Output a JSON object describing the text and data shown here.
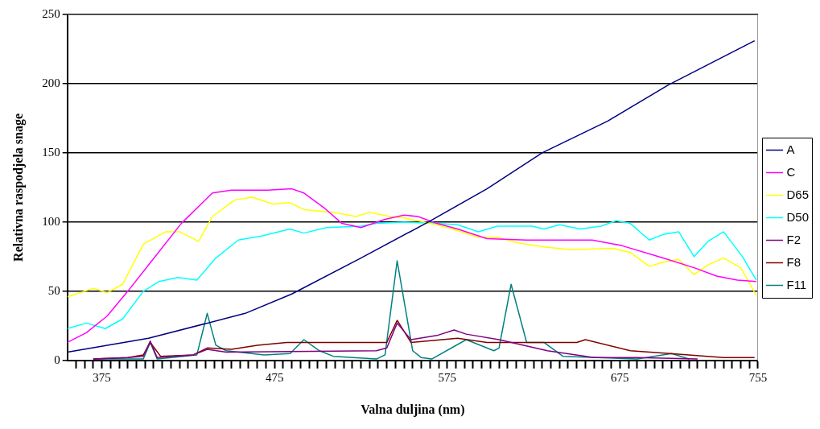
{
  "chart_data": {
    "type": "line",
    "xlabel": "Valna duljina (nm)",
    "ylabel": "Relativna raspodjela snage",
    "xlim": [
      355,
      755
    ],
    "ylim": [
      0,
      250
    ],
    "yticks": [
      0,
      50,
      100,
      150,
      200,
      250
    ],
    "xticks": [
      {
        "value": 360,
        "label": null
      },
      {
        "value": 365,
        "label": null
      },
      {
        "value": 370,
        "label": null
      },
      375,
      {
        "value": 380,
        "label": null
      },
      {
        "value": 385,
        "label": null
      },
      {
        "value": 390,
        "label": null
      },
      {
        "value": 395,
        "label": null
      },
      {
        "value": 400,
        "label": null
      },
      {
        "value": 405,
        "label": null
      },
      {
        "value": 410,
        "label": null
      },
      {
        "value": 415,
        "label": null
      },
      {
        "value": 420,
        "label": null
      },
      {
        "value": 425,
        "label": null
      },
      {
        "value": 430,
        "label": null
      },
      {
        "value": 435,
        "label": null
      },
      {
        "value": 440,
        "label": null
      },
      {
        "value": 445,
        "label": null
      },
      {
        "value": 450,
        "label": null
      },
      {
        "value": 455,
        "label": null
      },
      {
        "value": 460,
        "label": null
      },
      {
        "value": 465,
        "label": null
      },
      {
        "value": 470,
        "label": null
      },
      475,
      {
        "value": 480,
        "label": null
      },
      {
        "value": 485,
        "label": null
      },
      {
        "value": 490,
        "label": null
      },
      {
        "value": 495,
        "label": null
      },
      {
        "value": 500,
        "label": null
      },
      {
        "value": 505,
        "label": null
      },
      {
        "value": 510,
        "label": null
      },
      {
        "value": 515,
        "label": null
      },
      {
        "value": 520,
        "label": null
      },
      {
        "value": 525,
        "label": null
      },
      {
        "value": 530,
        "label": null
      },
      {
        "value": 535,
        "label": null
      },
      {
        "value": 540,
        "label": null
      },
      {
        "value": 545,
        "label": null
      },
      {
        "value": 550,
        "label": null
      },
      {
        "value": 555,
        "label": null
      },
      {
        "value": 560,
        "label": null
      },
      {
        "value": 565,
        "label": null
      },
      {
        "value": 570,
        "label": null
      },
      575,
      {
        "value": 580,
        "label": null
      },
      {
        "value": 585,
        "label": null
      },
      {
        "value": 590,
        "label": null
      },
      {
        "value": 595,
        "label": null
      },
      {
        "value": 600,
        "label": null
      },
      {
        "value": 605,
        "label": null
      },
      {
        "value": 610,
        "label": null
      },
      {
        "value": 615,
        "label": null
      },
      {
        "value": 620,
        "label": null
      },
      {
        "value": 625,
        "label": null
      },
      {
        "value": 630,
        "label": null
      },
      {
        "value": 635,
        "label": null
      },
      {
        "value": 640,
        "label": null
      },
      {
        "value": 645,
        "label": null
      },
      {
        "value": 650,
        "label": null
      },
      {
        "value": 655,
        "label": null
      },
      {
        "value": 660,
        "label": null
      },
      {
        "value": 665,
        "label": null
      },
      {
        "value": 670,
        "label": null
      },
      675,
      {
        "value": 680,
        "label": null
      },
      {
        "value": 685,
        "label": null
      },
      {
        "value": 690,
        "label": null
      },
      {
        "value": 695,
        "label": null
      },
      {
        "value": 700,
        "label": null
      },
      {
        "value": 705,
        "label": null
      },
      {
        "value": 710,
        "label": null
      },
      {
        "value": 715,
        "label": null
      },
      {
        "value": 720,
        "label": null
      },
      {
        "value": 725,
        "label": null
      },
      {
        "value": 730,
        "label": null
      },
      {
        "value": 735,
        "label": null
      },
      {
        "value": 740,
        "label": null
      },
      {
        "value": 745,
        "label": null
      },
      {
        "value": 750,
        "label": null
      },
      755
    ],
    "grid": "y",
    "legend": "right",
    "marker": "none",
    "line_style": "solid",
    "series": [
      {
        "name": "A",
        "color": "#000080",
        "x": [
          355,
          402,
          458,
          485,
          525,
          564,
          598,
          630,
          668,
          703,
          728,
          753
        ],
        "values": [
          6,
          16,
          34,
          48,
          74,
          100,
          124,
          150,
          173,
          199,
          215,
          231
        ]
      },
      {
        "name": "C",
        "color": "#ff00ff",
        "x": [
          355,
          366,
          378,
          390,
          402,
          421,
          439,
          450,
          471,
          485,
          492,
          504,
          514,
          525,
          539,
          550,
          558,
          569,
          581,
          598,
          621,
          659,
          676,
          700,
          718,
          731,
          743,
          754
        ],
        "values": [
          13,
          20,
          32,
          50,
          69,
          99,
          121,
          123,
          123,
          124,
          121,
          110,
          99,
          96,
          102,
          105,
          104,
          99,
          95,
          88,
          87,
          87,
          83,
          74,
          67,
          61,
          58,
          57
        ]
      },
      {
        "name": "D65",
        "color": "#ffff00",
        "x": [
          355,
          370,
          378,
          387,
          399,
          412,
          420,
          431,
          439,
          452,
          462,
          474,
          484,
          492,
          509,
          522,
          530,
          542,
          550,
          569,
          578,
          593,
          604,
          616,
          631,
          647,
          671,
          681,
          692,
          700,
          709,
          718,
          726,
          735,
          745,
          754
        ],
        "values": [
          46,
          52,
          49,
          55,
          84,
          93,
          93,
          86,
          104,
          116,
          118,
          113,
          114,
          109,
          107,
          104,
          107,
          104,
          103,
          98,
          95,
          89,
          89,
          85,
          82,
          80,
          81,
          78,
          68,
          71,
          73,
          62,
          69,
          74,
          67,
          47
        ]
      },
      {
        "name": "D50",
        "color": "#00ffff",
        "x": [
          355,
          366,
          377,
          387,
          399,
          408,
          419,
          430,
          441,
          454,
          468,
          484,
          492,
          505,
          525,
          534,
          550,
          569,
          581,
          593,
          604,
          624,
          631,
          640,
          652,
          664,
          673,
          681,
          692,
          700,
          709,
          718,
          726,
          735,
          746,
          754
        ],
        "values": [
          23,
          27,
          23,
          30,
          50,
          57,
          60,
          58,
          74,
          87,
          90,
          95,
          92,
          96,
          97,
          99,
          100,
          99,
          98,
          93,
          97,
          97,
          95,
          98,
          95,
          97,
          101,
          99,
          87,
          91,
          93,
          75,
          86,
          93,
          75,
          58
        ]
      },
      {
        "name": "F2",
        "color": "#800080",
        "x": [
          370,
          390,
          399,
          403,
          407,
          428,
          436,
          447,
          534,
          540,
          546,
          554,
          569,
          579,
          586,
          605,
          633,
          660,
          685,
          720
        ],
        "values": [
          1,
          2,
          3,
          14,
          2,
          4,
          8,
          6,
          7,
          9,
          27,
          15,
          18,
          22,
          19,
          15,
          7,
          2,
          2,
          1
        ]
      },
      {
        "name": "F8",
        "color": "#800000",
        "x": [
          370,
          390,
          399,
          403,
          409,
          428,
          436,
          450,
          465,
          482,
          540,
          546,
          554,
          581,
          598,
          650,
          655,
          681,
          704,
          735,
          753
        ],
        "values": [
          1,
          2,
          4,
          13,
          3,
          4,
          9,
          8,
          11,
          13,
          13,
          29,
          13,
          16,
          13,
          13,
          15,
          7,
          5,
          2,
          2
        ]
      },
      {
        "name": "F11",
        "color": "#008080",
        "x": [
          370,
          399,
          403,
          407,
          430,
          436,
          441,
          447,
          469,
          484,
          492,
          501,
          509,
          534,
          539,
          546,
          555,
          560,
          566,
          586,
          602,
          605,
          612,
          621,
          631,
          642,
          685,
          705,
          715
        ],
        "values": [
          1,
          1,
          13,
          1,
          4,
          34,
          11,
          7,
          4,
          5,
          15,
          7,
          3,
          1,
          4,
          72,
          7,
          2,
          1,
          15,
          7,
          9,
          55,
          13,
          13,
          3,
          1,
          5,
          1
        ]
      }
    ]
  }
}
